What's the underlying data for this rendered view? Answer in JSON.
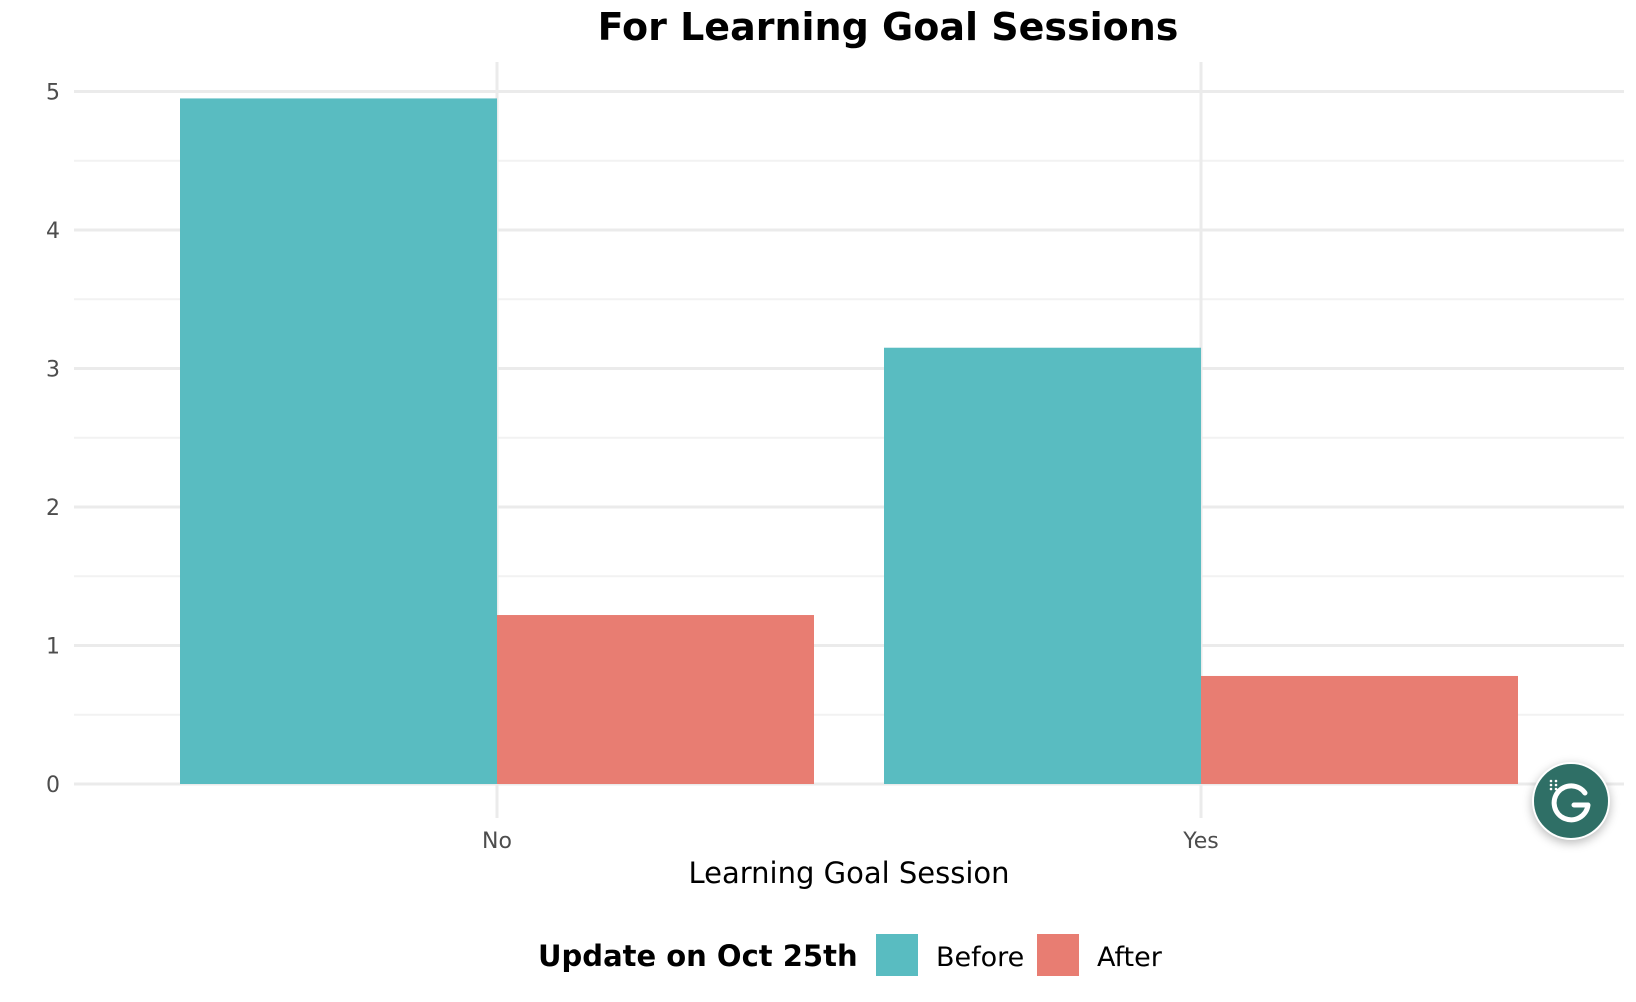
{
  "chart_data": {
    "type": "bar",
    "title": "For Learning Goal Sessions",
    "xlabel": "Learning Goal Session",
    "ylabel": "",
    "categories": [
      "No",
      "Yes"
    ],
    "series": [
      {
        "name": "Before",
        "color": "#59bcc1",
        "values": [
          4.95,
          3.15
        ]
      },
      {
        "name": "After",
        "color": "#e87d72",
        "values": [
          1.22,
          0.78
        ]
      }
    ],
    "ylim": [
      0,
      5.2
    ],
    "yticks": [
      "0",
      "1",
      "2",
      "3",
      "4",
      "5"
    ],
    "grid": true,
    "legend": {
      "title": "Update on Oct 25th",
      "position": "bottom",
      "items": [
        "Before",
        "After"
      ]
    }
  },
  "overlay": {
    "icon": "grammarly-icon"
  }
}
